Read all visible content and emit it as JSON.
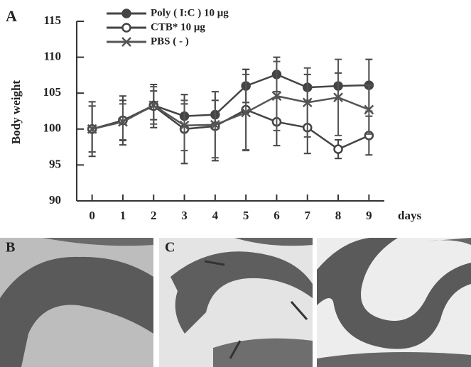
{
  "chart_data": {
    "type": "line",
    "panel_label": "A",
    "ylabel": "Body weight",
    "xlabel": "days",
    "x": [
      0,
      1,
      2,
      3,
      4,
      5,
      6,
      7,
      8,
      9
    ],
    "xlim": [
      -0.5,
      9.5
    ],
    "xticks": [
      0,
      1,
      2,
      3,
      4,
      5,
      6,
      7,
      8,
      9
    ],
    "ylim": [
      90,
      115
    ],
    "yticks": [
      90,
      95,
      100,
      105,
      110,
      115
    ],
    "series": [
      {
        "name": "Poly ( I:C ) 10 μg",
        "color": "#444",
        "marker": "filled-circle",
        "values": [
          100,
          101.2,
          103.3,
          101.8,
          102,
          106,
          107.6,
          105.8,
          106,
          106.1
        ],
        "errors": [
          3.2,
          2.8,
          2,
          1.7,
          2,
          2.3,
          2.4,
          1.8,
          1.8,
          3.6
        ]
      },
      {
        "name": "CTB* 10 μg",
        "color": "#444",
        "marker": "open-circle",
        "values": [
          100,
          101.2,
          103.2,
          100,
          100.4,
          102.7,
          101,
          100.2,
          97.2,
          99.1
        ],
        "errors": [
          3.8,
          3.4,
          3,
          4.8,
          4.8,
          5.6,
          3.3,
          3.6,
          1.3,
          2.7
        ]
      },
      {
        "name": "PBS ( - )",
        "color": "#555",
        "marker": "x",
        "values": [
          100,
          101,
          103.3,
          100.5,
          100.6,
          102.3,
          104.6,
          103.7,
          104.4,
          102.7
        ],
        "errors": [
          3.2,
          2.5,
          2.6,
          3.5,
          4.6,
          5.3,
          4.8,
          4.8,
          5.3,
          3.4
        ]
      }
    ]
  },
  "panels": [
    "B",
    "C"
  ]
}
